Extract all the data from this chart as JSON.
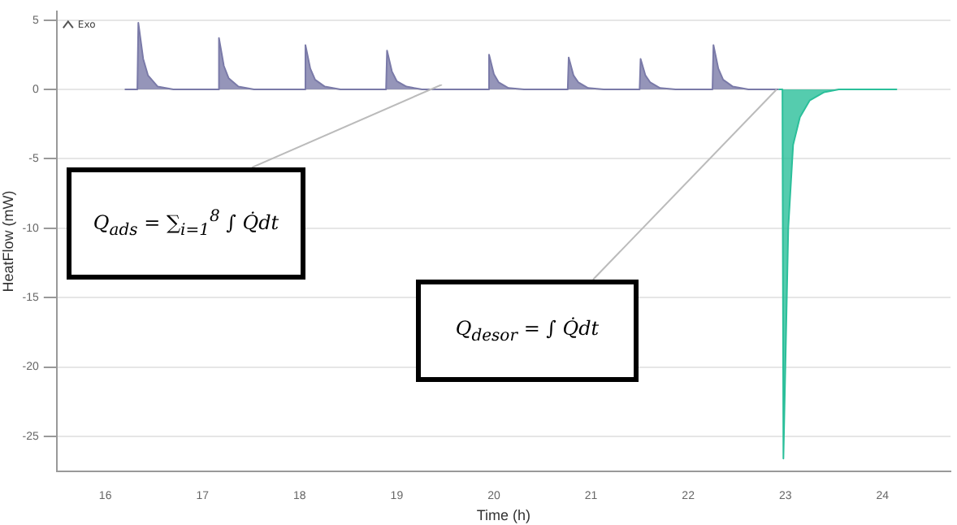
{
  "chart_data": {
    "type": "area",
    "xlabel": "Time (h)",
    "ylabel": "HeatFlow (mW)",
    "xlim": [
      15.5,
      24.7
    ],
    "xticks": [
      16,
      17,
      18,
      19,
      20,
      21,
      22,
      23,
      24
    ],
    "ylim": [
      -27.5,
      5.6
    ],
    "yticks": [
      5,
      0,
      -5,
      -10,
      -15,
      -20,
      -25
    ],
    "grid": "y",
    "annotations": [
      "Exo",
      "Q$_{ads}$ = ∑$_{i=1}$$^{8}$ ∫ Q̇dt",
      "Q$_{desor}$ = ∫ Q̇dt"
    ],
    "series": [
      {
        "color": "#7a7aa8",
        "x": [
          16.2,
          16.33,
          16.34,
          16.39,
          16.44,
          16.54,
          16.7,
          17.16,
          17.17,
          17.22,
          17.27,
          17.37,
          17.53,
          18.05,
          18.06,
          18.11,
          18.16,
          18.26,
          18.42,
          18.89,
          18.9,
          18.95,
          19.0,
          19.1,
          19.26,
          19.94,
          19.95,
          20.0,
          20.05,
          20.15,
          20.31,
          20.76,
          20.77,
          20.82,
          20.87,
          20.97,
          21.13,
          21.5,
          21.51,
          21.56,
          21.61,
          21.71,
          21.87,
          22.25,
          22.26,
          22.31,
          22.36,
          22.46,
          22.62,
          22.93
        ],
        "values": [
          0,
          0,
          4.8,
          2.2,
          1.0,
          0.2,
          0,
          0,
          3.7,
          1.7,
          0.8,
          0.2,
          0,
          0,
          3.2,
          1.5,
          0.7,
          0.2,
          0,
          0,
          2.8,
          1.3,
          0.6,
          0.2,
          0,
          0,
          2.5,
          1.1,
          0.5,
          0.1,
          0,
          0,
          2.3,
          1.0,
          0.5,
          0.1,
          0,
          0,
          2.2,
          1.0,
          0.5,
          0.1,
          0,
          0,
          3.2,
          1.5,
          0.7,
          0.2,
          0,
          0
        ]
      },
      {
        "color": "#2bbf9a",
        "x": [
          22.93,
          22.97,
          22.98,
          23.0,
          23.03,
          23.08,
          23.15,
          23.25,
          23.4,
          23.55,
          24.15
        ],
        "values": [
          0,
          0,
          -26.6,
          -20,
          -10,
          -4,
          -2,
          -0.8,
          -0.2,
          0,
          0
        ]
      }
    ]
  }
}
